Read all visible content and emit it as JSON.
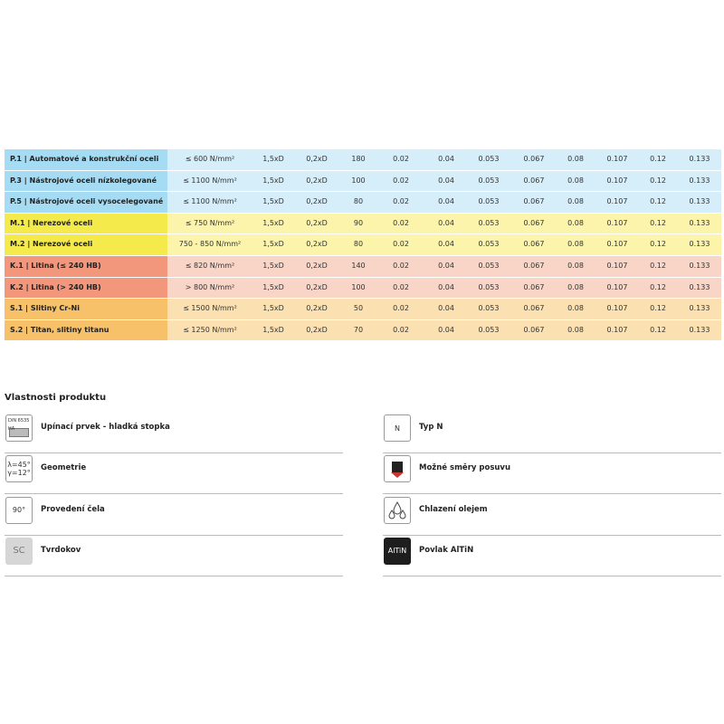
{
  "table": {
    "rows": [
      [
        "P.1 | Automatové a konstrukční oceli",
        "≤ 600 N/mm²",
        "1,5xD",
        "0,2xD",
        "180",
        "0.02",
        "0.04",
        "0.053",
        "0.067",
        "0.08",
        "0.107",
        "0.12",
        "0.133"
      ],
      [
        "P.3 | Nástrojové oceli nízkolegované",
        "≤ 1100 N/mm²",
        "1,5xD",
        "0,2xD",
        "100",
        "0.02",
        "0.04",
        "0.053",
        "0.067",
        "0.08",
        "0.107",
        "0.12",
        "0.133"
      ],
      [
        "P.5 | Nástrojové oceli vysocelegované",
        "≤ 1100 N/mm²",
        "1,5xD",
        "0,2xD",
        "80",
        "0.02",
        "0.04",
        "0.053",
        "0.067",
        "0.08",
        "0.107",
        "0.12",
        "0.133"
      ],
      [
        "M.1 | Nerezové oceli",
        "≤ 750 N/mm²",
        "1,5xD",
        "0,2xD",
        "90",
        "0.02",
        "0.04",
        "0.053",
        "0.067",
        "0.08",
        "0.107",
        "0.12",
        "0.133"
      ],
      [
        "M.2 | Nerezové oceli",
        "750 - 850 N/mm²",
        "1,5xD",
        "0,2xD",
        "80",
        "0.02",
        "0.04",
        "0.053",
        "0.067",
        "0.08",
        "0.107",
        "0.12",
        "0.133"
      ],
      [
        "K.1 | Litina (≤ 240 HB)",
        "≤ 820 N/mm²",
        "1,5xD",
        "0,2xD",
        "140",
        "0.02",
        "0.04",
        "0.053",
        "0.067",
        "0.08",
        "0.107",
        "0.12",
        "0.133"
      ],
      [
        "K.2 | Litina (> 240 HB)",
        "> 800 N/mm²",
        "1,5xD",
        "0,2xD",
        "100",
        "0.02",
        "0.04",
        "0.053",
        "0.067",
        "0.08",
        "0.107",
        "0.12",
        "0.133"
      ],
      [
        "S.1 | Slitiny Cr-Ni",
        "≤ 1500 N/mm²",
        "1,5xD",
        "0,2xD",
        "50",
        "0.02",
        "0.04",
        "0.053",
        "0.067",
        "0.08",
        "0.107",
        "0.12",
        "0.133"
      ],
      [
        "S.2 | Titan, slitiny titanu",
        "≤ 1250 N/mm²",
        "1,5xD",
        "0,2xD",
        "70",
        "0.02",
        "0.04",
        "0.053",
        "0.067",
        "0.08",
        "0.107",
        "0.12",
        "0.133"
      ]
    ]
  },
  "properties": {
    "title": "Vlastnosti produktu",
    "left": [
      {
        "icon": [
          "DIN 6535",
          "HA"
        ],
        "label": "Upínací prvek - hladká stopka"
      },
      {
        "icon": [
          "λ=45°",
          "γ=12°"
        ],
        "label": "Geometrie"
      },
      {
        "icon": [
          "90°"
        ],
        "label": "Provedení čela"
      },
      {
        "icon": [
          "SC"
        ],
        "label": "Tvrdokov"
      }
    ],
    "right": [
      {
        "icon": [
          "N"
        ],
        "label": "Typ N"
      },
      {
        "icon": [],
        "label": "Možné směry posuvu"
      },
      {
        "icon": [],
        "label": "Chlazení olejem"
      },
      {
        "icon": [
          "AlTiN"
        ],
        "label": "Povlak AlTiN"
      }
    ]
  }
}
